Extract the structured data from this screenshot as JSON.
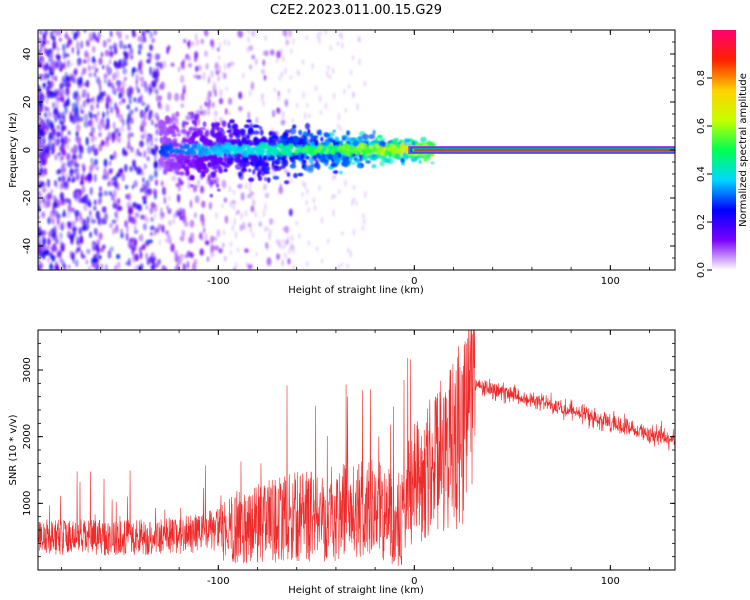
{
  "title": "C2E2.2023.011.00.15.G29",
  "chart_data": [
    {
      "type": "heatmap",
      "xlabel": "Height of straight line (km)",
      "ylabel": "Frequency (Hz)",
      "xlim": [
        -192,
        133
      ],
      "ylim": [
        -50,
        50
      ],
      "xticks": [
        -100,
        0,
        100
      ],
      "yticks": [
        -40,
        -20,
        0,
        20,
        40
      ],
      "colorbar": {
        "label": "Normalized spectral amplitude",
        "range": [
          0,
          1
        ],
        "ticks": [
          "0.0",
          "0.2",
          "0.4",
          "0.6",
          "0.8"
        ],
        "tick_values": [
          0.0,
          0.2,
          0.4,
          0.6,
          0.8
        ],
        "stops": [
          "#ffffff",
          "#7a00ff",
          "#0000ff",
          "#00d8ff",
          "#00ff50",
          "#c8ff00",
          "#ffd000",
          "#ff2000",
          "#ff0070"
        ]
      },
      "features": [
        {
          "name": "noise",
          "x_range": [
            -192,
            -70
          ],
          "freq_range": [
            -50,
            50
          ]
        },
        {
          "name": "signal_band",
          "x_range": [
            -130,
            10
          ],
          "center_freq": 0
        },
        {
          "name": "carrier_line",
          "x_range": [
            0,
            133
          ],
          "freq": 0
        }
      ],
      "grid": false
    },
    {
      "type": "line",
      "xlabel": "Height of straight line (km)",
      "ylabel": "SNR (10 * v/v)",
      "xlim": [
        -192,
        133
      ],
      "ylim": [
        0,
        3600
      ],
      "xticks": [
        -100,
        0,
        100
      ],
      "yticks": [
        1000,
        2000,
        3000
      ],
      "color": "#ee2a2a",
      "envelope": {
        "x": [
          -192,
          -150,
          -120,
          -100,
          -80,
          -60,
          -40,
          -20,
          -10,
          0,
          10,
          20,
          25,
          30,
          31,
          40,
          60,
          80,
          100,
          120,
          133
        ],
        "y": [
          500,
          480,
          520,
          600,
          700,
          800,
          850,
          900,
          800,
          1300,
          1600,
          1900,
          2100,
          2400,
          2800,
          2700,
          2560,
          2400,
          2220,
          2030,
          1950
        ]
      },
      "grid": false
    }
  ]
}
